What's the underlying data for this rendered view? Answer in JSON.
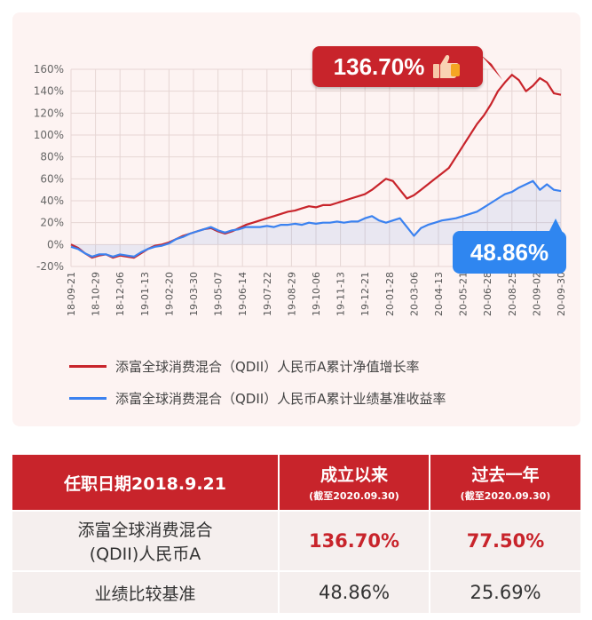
{
  "chart_data": {
    "type": "line",
    "ylim": [
      -20,
      160
    ],
    "yticks": [
      "-20%",
      "0%",
      "20%",
      "40%",
      "60%",
      "80%",
      "100%",
      "120%",
      "140%",
      "160%"
    ],
    "xticks": [
      "18-09-21",
      "18-10-29",
      "18-12-06",
      "19-01-13",
      "19-02-20",
      "19-03-30",
      "19-05-07",
      "19-06-14",
      "19-07-22",
      "19-08-29",
      "19-10-06",
      "19-11-13",
      "19-12-21",
      "20-01-28",
      "20-03-06",
      "20-04-13",
      "20-05-21",
      "20-06-28",
      "20-08-25",
      "20-09-02",
      "20-09-30"
    ],
    "grid": true,
    "legend_position": "bottom",
    "series": [
      {
        "name": "添富全球消费混合（QDII）人民币A累计净值增长率",
        "color": "#c8242b",
        "values": [
          0,
          -3,
          -8,
          -12,
          -10,
          -9,
          -12,
          -10,
          -11,
          -12,
          -8,
          -4,
          -1,
          0,
          2,
          5,
          8,
          10,
          12,
          14,
          15,
          12,
          10,
          12,
          15,
          18,
          20,
          22,
          24,
          26,
          28,
          30,
          31,
          33,
          35,
          34,
          36,
          36,
          38,
          40,
          42,
          44,
          46,
          50,
          55,
          60,
          58,
          50,
          42,
          45,
          50,
          55,
          60,
          65,
          70,
          80,
          90,
          100,
          110,
          118,
          128,
          140,
          148,
          155,
          150,
          140,
          145,
          152,
          148,
          138,
          136.7
        ]
      },
      {
        "name": "添富全球消费混合（QDII）人民币A累计业绩基准收益率",
        "color": "#3b82f0",
        "values": [
          -2,
          -4,
          -8,
          -11,
          -9,
          -9,
          -11,
          -9,
          -10,
          -11,
          -7,
          -4,
          -2,
          -1,
          1,
          5,
          7,
          10,
          12,
          14,
          16,
          13,
          11,
          13,
          14,
          16,
          16,
          16,
          17,
          16,
          18,
          18,
          19,
          18,
          20,
          19,
          20,
          20,
          21,
          20,
          21,
          21,
          24,
          26,
          22,
          20,
          22,
          24,
          16,
          8,
          15,
          18,
          20,
          22,
          23,
          24,
          26,
          28,
          30,
          34,
          38,
          42,
          46,
          48,
          52,
          55,
          58,
          50,
          55,
          50,
          48.86
        ]
      }
    ]
  },
  "callouts": {
    "red_value": "136.70%",
    "blue_value": "48.86%"
  },
  "table": {
    "header_left": "任职日期2018.9.21",
    "col1_main": "成立以来",
    "col1_sub": "(截至2020.09.30)",
    "col2_main": "过去一年",
    "col2_sub": "(截至2020.09.30)",
    "rows": [
      {
        "label_line1": "添富全球消费混合",
        "label_line2": "(QDII)人民币A",
        "v1": "136.70%",
        "v2": "77.50%"
      },
      {
        "label": "业绩比较基准",
        "v1": "48.86%",
        "v2": "25.69%"
      }
    ]
  },
  "colors": {
    "red": "#c8242b",
    "blue": "#3b82f0",
    "panel_bg": "#fdf3f2"
  }
}
